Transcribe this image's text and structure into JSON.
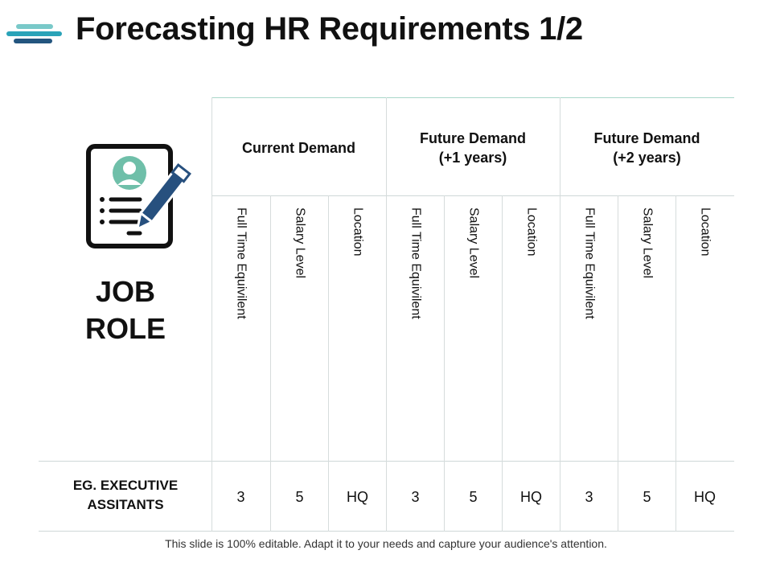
{
  "title": "Forecasting HR Requirements 1/2",
  "colors": {
    "logo_light": "#79c9c9",
    "logo_mid": "#2aa3b8",
    "logo_dark": "#23557f",
    "pen": "#27507e",
    "avatar": "#6fbfa9",
    "table_line": "#a9d7c9"
  },
  "icon": "resume-pen-icon",
  "job_role": {
    "line1": "JOB",
    "line2": "ROLE"
  },
  "groups": [
    {
      "line1": "Current Demand",
      "line2": ""
    },
    {
      "line1": "Future Demand",
      "line2": "(+1 years)"
    },
    {
      "line1": "Future Demand",
      "line2": "(+2 years)"
    }
  ],
  "columns": [
    "Full Time Equivilent",
    "Salary Level",
    "Location",
    "Full Time Equivilent",
    "Salary Level",
    "Location",
    "Full Time Equivilent",
    "Salary Level",
    "Location"
  ],
  "row": {
    "label_line1": "EG. EXECUTIVE",
    "label_line2": "ASSITANTS",
    "values": [
      "3",
      "5",
      "HQ",
      "3",
      "5",
      "HQ",
      "3",
      "5",
      "HQ"
    ]
  },
  "footer": "This slide is 100% editable. Adapt it to your needs and capture your audience's attention."
}
